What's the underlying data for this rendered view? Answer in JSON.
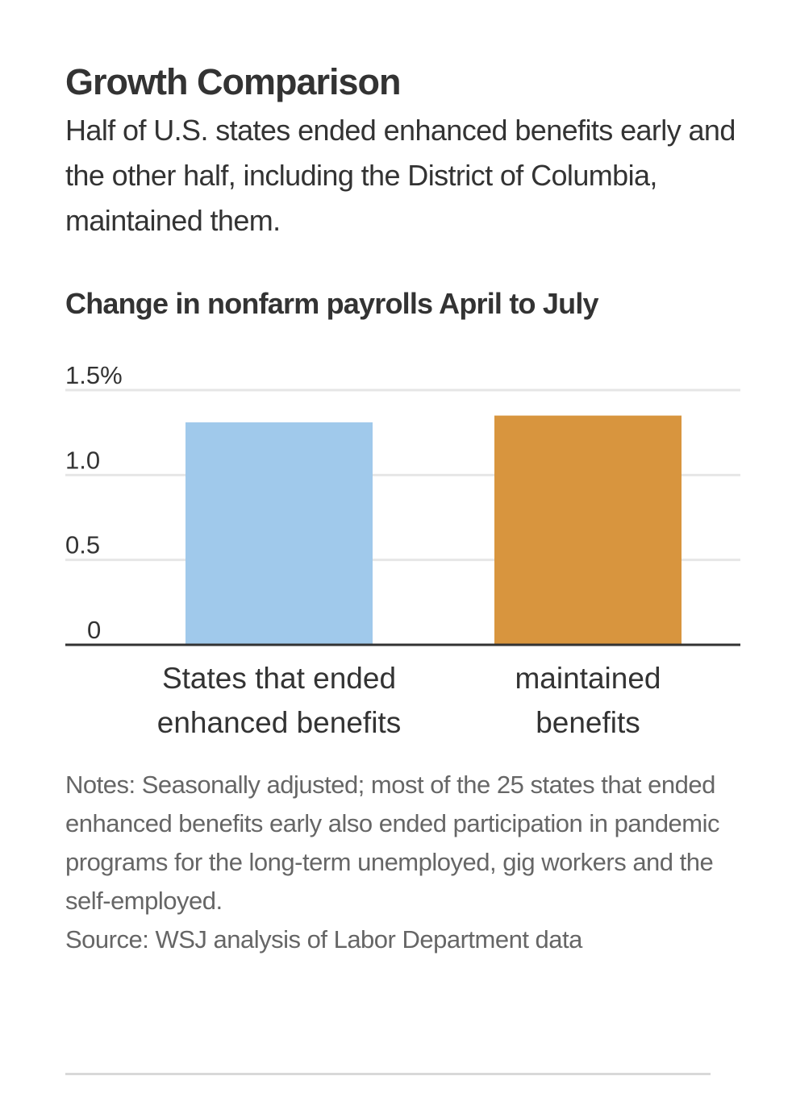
{
  "header": {
    "title": "Growth Comparison",
    "subtitle": "Half of U.S. states ended enhanced benefits early and the other half, including the District of Columbia, maintained them."
  },
  "chart_data": {
    "type": "bar",
    "title": "Change in nonfarm payrolls April to July",
    "xlabel": "",
    "ylabel": "",
    "categories": [
      [
        "States that ended",
        "enhanced benefits"
      ],
      [
        "maintained",
        "benefits"
      ]
    ],
    "values": [
      1.31,
      1.35
    ],
    "colors": [
      "#a0c9eb",
      "#d8953e"
    ],
    "ylim": [
      0,
      1.5
    ],
    "yticks": [
      0,
      0.5,
      1.0,
      1.5
    ],
    "ytick_labels": [
      "0",
      "0.5",
      "1.0",
      "1.5%"
    ],
    "grid": true,
    "legend": "none"
  },
  "footer": {
    "notes": "Notes: Seasonally adjusted; most of the 25 states that ended enhanced benefits early also ended participation in pandemic programs for the long-term unemployed, gig workers and the self-employed.",
    "source": "Source: WSJ analysis of Labor Department data"
  },
  "style": {
    "grid_color": "#e6e6e6",
    "axis_color": "#333333",
    "tick_color": "#333333"
  }
}
